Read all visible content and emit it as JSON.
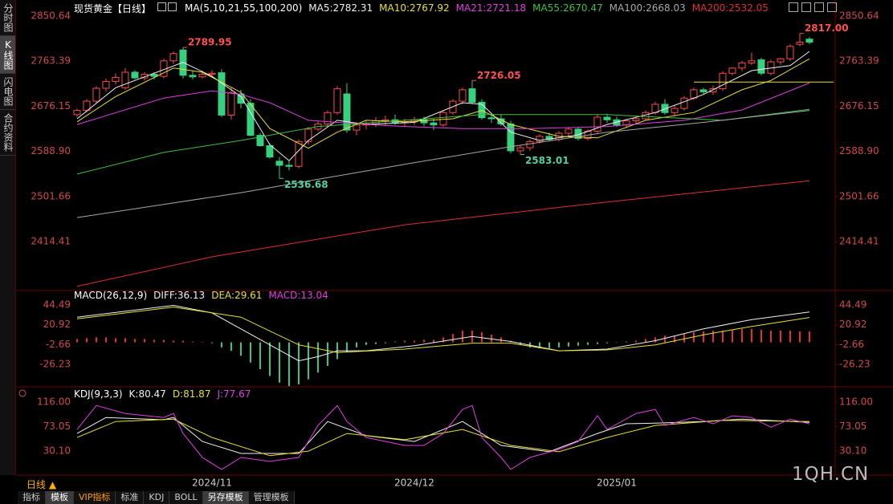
{
  "sidebar": {
    "tabs": [
      "分时图",
      "K线图",
      "闪电图",
      "合约资料"
    ],
    "active": "K线图"
  },
  "period": "日线 ▲",
  "tabs": {
    "items": [
      "指标",
      "模板",
      "VIP指标",
      "标准",
      "KDJ",
      "BOLL",
      "另存模板",
      "管理模板"
    ],
    "highlighted": [
      "模板",
      "另存模板"
    ],
    "accent": "VIP指标"
  },
  "watermark": "1QH.CN",
  "chart_data": [
    {
      "type": "candlestick",
      "title": "现货黄金【日线】",
      "indicator": "MA(5,10,21,55,100,200)",
      "xlim": [
        -0.33,
        78.67
      ],
      "ylim": [
        2323,
        2863
      ],
      "yticks": [
        2850.64,
        2763.39,
        2676.15,
        {
          "value": 2588.9,
          "label": "2588.90"
        },
        2501.66,
        2414.41
      ],
      "up_color": "#ff4a4a",
      "down_color": "#36d07f",
      "candles": {
        "open": [
          2660,
          2668,
          2686,
          2711,
          2724,
          2712,
          2742,
          2731,
          2738,
          2734,
          2764,
          2785,
          2736,
          2733,
          2738,
          2741,
          2659,
          2700,
          2682,
          2620,
          2600,
          2570,
          2562,
          2560,
          2608,
          2632,
          2642,
          2664,
          2700,
          2630,
          2640,
          2642,
          2648,
          2650,
          2645,
          2646,
          2650,
          2644,
          2640,
          2664,
          2686,
          2710,
          2684,
          2654,
          2652,
          2642,
          2590,
          2596,
          2608,
          2618,
          2612,
          2624,
          2632,
          2614,
          2628,
          2655,
          2650,
          2640,
          2648,
          2652,
          2664,
          2680,
          2664,
          2672,
          2692,
          2708,
          2704,
          2710,
          2740,
          2750,
          2760,
          2766,
          2740,
          2762,
          2768,
          2796,
          2806
        ],
        "high": [
          2672,
          2690,
          2715,
          2730,
          2740,
          2750,
          2746,
          2742,
          2742,
          2768,
          2782,
          2789.95,
          2745,
          2745,
          2746,
          2748,
          2712,
          2708,
          2690,
          2625,
          2605,
          2578,
          2570,
          2612,
          2636,
          2648,
          2668,
          2715,
          2721,
          2645,
          2648,
          2655,
          2658,
          2660,
          2652,
          2656,
          2656,
          2652,
          2668,
          2690,
          2712,
          2726.05,
          2690,
          2662,
          2660,
          2648,
          2600,
          2612,
          2622,
          2625,
          2628,
          2636,
          2636,
          2632,
          2660,
          2662,
          2656,
          2652,
          2656,
          2668,
          2685,
          2690,
          2678,
          2696,
          2712,
          2712,
          2716,
          2744,
          2752,
          2764,
          2780,
          2770,
          2766,
          2770,
          2796,
          2817,
          2810
        ],
        "low": [
          2655,
          2664,
          2682,
          2705,
          2718,
          2708,
          2728,
          2726,
          2728,
          2730,
          2758,
          2730,
          2728,
          2730,
          2732,
          2655,
          2650,
          2672,
          2618,
          2598,
          2575,
          2536.68,
          2552,
          2556,
          2602,
          2628,
          2636,
          2660,
          2625,
          2620,
          2632,
          2636,
          2640,
          2640,
          2636,
          2640,
          2638,
          2630,
          2636,
          2660,
          2680,
          2680,
          2650,
          2644,
          2638,
          2585,
          2583.01,
          2590,
          2604,
          2608,
          2608,
          2618,
          2610,
          2610,
          2624,
          2644,
          2636,
          2634,
          2640,
          2648,
          2660,
          2660,
          2656,
          2668,
          2688,
          2700,
          2698,
          2706,
          2736,
          2744,
          2756,
          2736,
          2736,
          2756,
          2764,
          2792,
          2796
        ],
        "close": [
          2668,
          2686,
          2711,
          2724,
          2732,
          2742,
          2731,
          2738,
          2734,
          2764,
          2778,
          2736,
          2733,
          2738,
          2740,
          2659,
          2702,
          2682,
          2620,
          2600,
          2578,
          2562,
          2560,
          2608,
          2632,
          2642,
          2664,
          2710,
          2630,
          2640,
          2642,
          2648,
          2650,
          2645,
          2646,
          2650,
          2644,
          2640,
          2664,
          2686,
          2708,
          2684,
          2654,
          2652,
          2642,
          2590,
          2596,
          2608,
          2618,
          2612,
          2624,
          2632,
          2614,
          2628,
          2655,
          2650,
          2640,
          2648,
          2652,
          2664,
          2680,
          2664,
          2672,
          2692,
          2708,
          2704,
          2710,
          2740,
          2750,
          2760,
          2764,
          2740,
          2762,
          2768,
          2792,
          2800,
          2800
        ]
      },
      "series": [
        {
          "name": "MA5:2782.31",
          "color": "#f0f0f0",
          "x": [
            0,
            4,
            11,
            14,
            17,
            20,
            22,
            24,
            27,
            30,
            35,
            40,
            42,
            45,
            48,
            52,
            55,
            60,
            65,
            70,
            74,
            76
          ],
          "values": [
            2652,
            2712,
            2761,
            2734,
            2695,
            2602,
            2571,
            2610,
            2649,
            2641,
            2645,
            2683,
            2680,
            2626,
            2610,
            2621,
            2641,
            2664,
            2699,
            2745,
            2755,
            2782.31
          ]
        },
        {
          "name": "MA10:2767.92",
          "color": "#e8e030",
          "x": [
            0,
            4,
            10,
            13,
            17,
            20,
            24,
            27,
            30,
            34,
            39,
            42,
            45,
            50,
            54,
            59,
            64,
            69,
            72,
            76
          ],
          "values": [
            2646,
            2695,
            2750,
            2742,
            2703,
            2633,
            2595,
            2626,
            2649,
            2646,
            2652,
            2668,
            2641,
            2618,
            2615,
            2649,
            2664,
            2708,
            2726,
            2767.92
          ]
        },
        {
          "name": "MA21:2721.18",
          "color": "#e040e0",
          "x": [
            0,
            9,
            14,
            17,
            20,
            24,
            30,
            34,
            40,
            47,
            55,
            63,
            69,
            76
          ],
          "values": [
            2641,
            2692,
            2706,
            2699,
            2683,
            2649,
            2641,
            2637,
            2633,
            2633,
            2637,
            2649,
            2669,
            2721.18
          ]
        },
        {
          "name": "MA55:2670.47",
          "color": "#40c040",
          "x": [
            0,
            9,
            17,
            25,
            34,
            42,
            55,
            67,
            76
          ],
          "values": [
            2545,
            2587,
            2610,
            2637,
            2649,
            2660,
            2660,
            2649,
            2670.47
          ]
        },
        {
          "name": "MA100:2668.03",
          "color": "#a8a8a8",
          "x": [
            0,
            17,
            34,
            45,
            55,
            65,
            76
          ],
          "values": [
            2461,
            2509,
            2564,
            2598,
            2626,
            2645,
            2668.03
          ]
        },
        {
          "name": "MA200:2532.05",
          "color": "#e03030",
          "x": [
            0,
            14,
            34,
            55,
            76
          ],
          "values": [
            2328,
            2385,
            2447,
            2491,
            2532.05
          ]
        }
      ],
      "hline": {
        "y": 2723,
        "x": [
          64,
          78.5
        ],
        "color": "#e8e030"
      },
      "annotations": [
        {
          "x": 11,
          "y": 2789.95,
          "label": "2789.95",
          "color": "#ff5050"
        },
        {
          "x": 21,
          "y": 2536.68,
          "label": "2536.68",
          "color": "#54d0a0"
        },
        {
          "x": 41,
          "y": 2726.05,
          "label": "2726.05",
          "color": "#ff5050"
        },
        {
          "x": 46,
          "y": 2583.01,
          "label": "2583.01",
          "color": "#54d0a0"
        },
        {
          "x": 75,
          "y": 2817,
          "label": "2817.00",
          "color": "#ff5050"
        }
      ]
    },
    {
      "type": "macd",
      "title": "MACD(26,12,9)",
      "xlim": [
        -0.33,
        78.67
      ],
      "ylim": [
        -51,
        58.8
      ],
      "yticks": [
        44.49,
        20.92,
        -2.66,
        -26.23
      ],
      "series": [
        {
          "name": "DIFF:36.13",
          "color": "#f0f0f0",
          "x": [
            0,
            10,
            14,
            17,
            20,
            23,
            25,
            27,
            30,
            35,
            41,
            45,
            50,
            55,
            60,
            65,
            70,
            76
          ],
          "values": [
            30,
            44,
            35,
            16,
            -3,
            -22,
            -17,
            -10,
            -10,
            -4,
            7,
            1,
            -10,
            -8,
            2,
            16,
            27,
            36.13
          ]
        },
        {
          "name": "DEA:29.61",
          "color": "#e8e030",
          "x": [
            0,
            10,
            17,
            23,
            27,
            34,
            41,
            45,
            50,
            55,
            60,
            65,
            70,
            76
          ],
          "values": [
            28,
            42,
            30,
            -3,
            -12,
            -8,
            -1,
            -1,
            -10,
            -9,
            -3,
            9,
            19,
            29.61
          ]
        }
      ],
      "histogram": {
        "name": "MACD:13.04",
        "color": "#e040e0",
        "up_color": "#e83030",
        "down_color": "#3cc88c",
        "values": [
          4,
          5,
          6,
          6,
          5,
          5,
          4,
          4,
          3,
          3,
          2,
          2,
          1,
          0.5,
          -1,
          -6,
          -10,
          -16,
          -24,
          -32,
          -40,
          -48,
          -52,
          -50,
          -44,
          -36,
          -28,
          -20,
          -12,
          -6,
          -3,
          -2,
          -1,
          1,
          2,
          2,
          3,
          3,
          6,
          10,
          14,
          14,
          12,
          9,
          6,
          2,
          -3,
          -6,
          -7,
          -7,
          -6,
          -5,
          -4,
          -3,
          -2,
          -1,
          0.5,
          1,
          2,
          4,
          6,
          8,
          8,
          10,
          12,
          13,
          14,
          14,
          15,
          16,
          16,
          15,
          14,
          14,
          14,
          13,
          13.04
        ]
      }
    },
    {
      "type": "line",
      "title": "KDJ(9,3,3)",
      "xlim": [
        -0.33,
        78.67
      ],
      "ylim": [
        -12,
        138.5
      ],
      "yticks": [
        {
          "value": 116,
          "label": "116.00"
        },
        73.05,
        {
          "value": 30.1,
          "label": "30.10"
        }
      ],
      "xticks": [
        {
          "value": 14,
          "label": "2024/11"
        },
        {
          "value": 35,
          "label": "2024/12"
        },
        {
          "value": 56,
          "label": "2025/01"
        }
      ],
      "series": [
        {
          "name": "K:80.47",
          "color": "#f0f0f0",
          "x": [
            0,
            3,
            9,
            10,
            13,
            17,
            23,
            26,
            30,
            35,
            40,
            44,
            49,
            54,
            57,
            60,
            65,
            69,
            76
          ],
          "values": [
            61,
            89,
            85,
            89,
            47,
            26,
            26,
            82,
            57,
            47,
            82,
            40,
            29,
            61,
            78,
            79,
            82,
            86,
            80.47
          ]
        },
        {
          "name": "D:81.87",
          "color": "#e8e030",
          "x": [
            0,
            4,
            10,
            14,
            20,
            24,
            28,
            34,
            40,
            45,
            50,
            55,
            60,
            67,
            76
          ],
          "values": [
            54,
            82,
            86,
            54,
            22,
            30,
            61,
            50,
            68,
            40,
            29,
            54,
            75,
            84,
            81.87
          ]
        },
        {
          "name": "J:77.67",
          "color": "#e040e0",
          "x": [
            0,
            2,
            5,
            9,
            10,
            11,
            13,
            15,
            17,
            20,
            23,
            25,
            27,
            28,
            30,
            34,
            36,
            38,
            40,
            41,
            42,
            44,
            45,
            47,
            50,
            52,
            54,
            55,
            58,
            60,
            61,
            64,
            66,
            68,
            70,
            72,
            74,
            76
          ],
          "values": [
            68,
            110,
            96,
            89,
            96,
            61,
            19,
            -2,
            19,
            12,
            19,
            75,
            110,
            82,
            54,
            40,
            40,
            61,
            103,
            110,
            54,
            19,
            -2,
            19,
            33,
            47,
            92,
            68,
            96,
            103,
            75,
            89,
            78,
            92,
            89,
            72,
            86,
            77.67
          ]
        }
      ]
    }
  ]
}
